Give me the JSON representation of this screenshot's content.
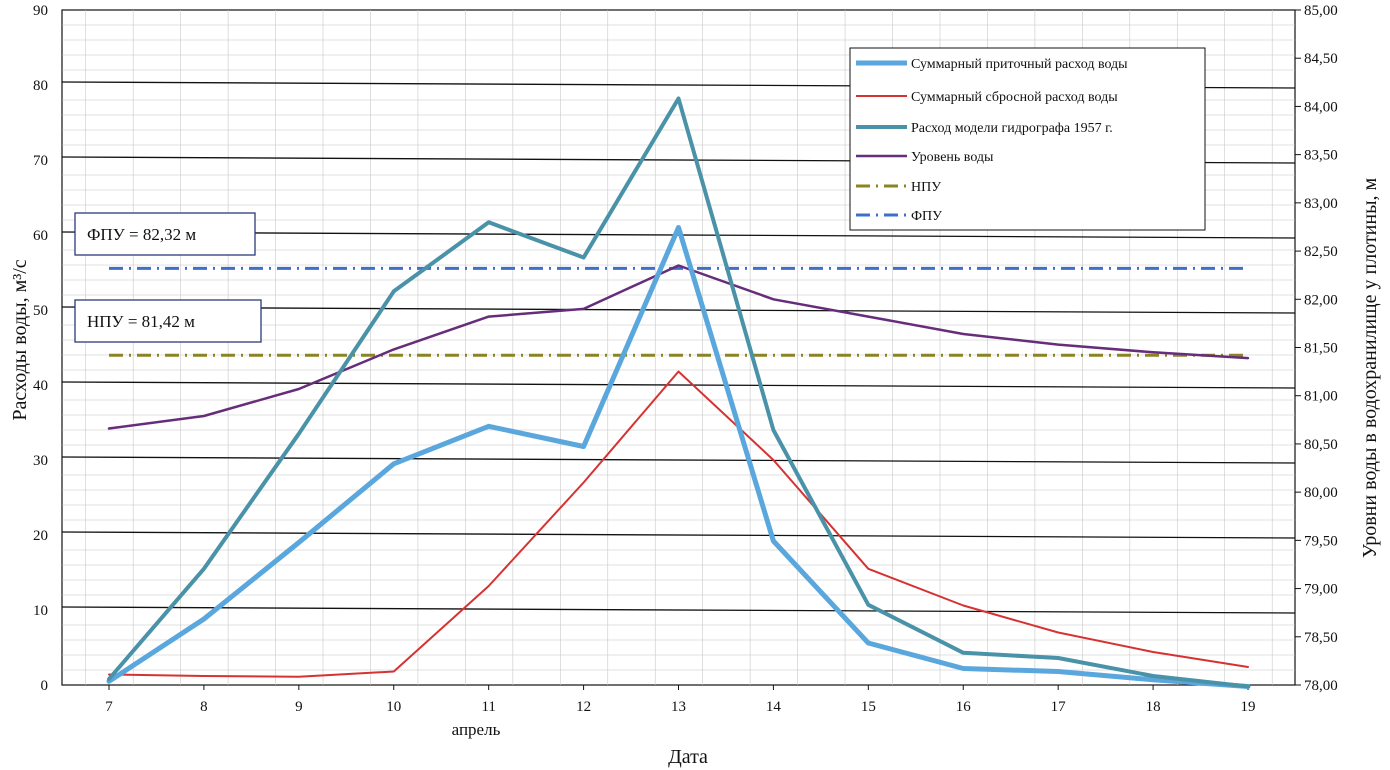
{
  "chart_data": {
    "type": "line",
    "title": "",
    "xlabel": "Дата",
    "x_sublabel": "апрель",
    "ylabel": "Расходы воды, м³/с",
    "y2label": "Уровни воды в водохранилище у плотины, м",
    "x": [
      7,
      8,
      9,
      10,
      11,
      12,
      13,
      14,
      15,
      16,
      17,
      18,
      19
    ],
    "ylim": [
      0,
      90
    ],
    "y_ticks": [
      "0",
      "10",
      "20",
      "30",
      "40",
      "50",
      "60",
      "70",
      "80",
      "90"
    ],
    "y2lim": [
      78.0,
      85.0
    ],
    "y2_ticks": [
      "78,00",
      "78,50",
      "79,00",
      "79,50",
      "80,00",
      "80,50",
      "81,00",
      "81,50",
      "82,00",
      "82,50",
      "83,00",
      "83,50",
      "84,00",
      "84,50",
      "85,00"
    ],
    "grid": true,
    "legend_position": "top-right",
    "series": [
      {
        "name": "Суммарный  приточный расход воды",
        "axis": "left",
        "color": "#5aa7dd",
        "width": 5,
        "style": "solid",
        "values": [
          0.5,
          8.8,
          19,
          29.5,
          34.5,
          31.8,
          61,
          19.2,
          5.6,
          2.2,
          1.8,
          0.7,
          -0.2
        ]
      },
      {
        "name": "Суммарный  сбросной расход воды",
        "axis": "left",
        "color": "#d63232",
        "width": 2,
        "style": "solid",
        "values": [
          1.4,
          1.2,
          1.1,
          1.8,
          13.2,
          27,
          41.8,
          30,
          15.5,
          10.6,
          7,
          4.4,
          2.4
        ]
      },
      {
        "name": "Расход модели гидрографа 1957 г.",
        "axis": "left",
        "color": "#4a92a8",
        "width": 4,
        "style": "solid",
        "values": [
          0.8,
          15.5,
          33.5,
          52.5,
          61.7,
          57,
          78.2,
          34,
          10.7,
          4.3,
          3.6,
          1.2,
          -0.2
        ]
      },
      {
        "name": "Уровень воды",
        "axis": "right",
        "color": "#662d7a",
        "width": 2.5,
        "style": "solid",
        "values": [
          80.66,
          80.79,
          81.07,
          81.48,
          81.82,
          81.9,
          82.35,
          82.0,
          81.82,
          81.64,
          81.53,
          81.45,
          81.39
        ]
      },
      {
        "name": "НПУ",
        "axis": "right",
        "color": "#8b8424",
        "width": 3,
        "style": "dashdot",
        "values": [
          81.42,
          81.42,
          81.42,
          81.42,
          81.42,
          81.42,
          81.42,
          81.42,
          81.42,
          81.42,
          81.42,
          81.42,
          81.42
        ]
      },
      {
        "name": "ФПУ",
        "axis": "right",
        "color": "#3f6fc9",
        "width": 3,
        "style": "dashdot",
        "values": [
          82.32,
          82.32,
          82.32,
          82.32,
          82.32,
          82.32,
          82.32,
          82.32,
          82.32,
          82.32,
          82.32,
          82.32,
          82.32
        ]
      }
    ],
    "annotations": [
      {
        "text": "ФПУ = 82,32  м",
        "level": 82.32
      },
      {
        "text": "НПУ = 81,42  м",
        "level": 81.42
      }
    ]
  }
}
